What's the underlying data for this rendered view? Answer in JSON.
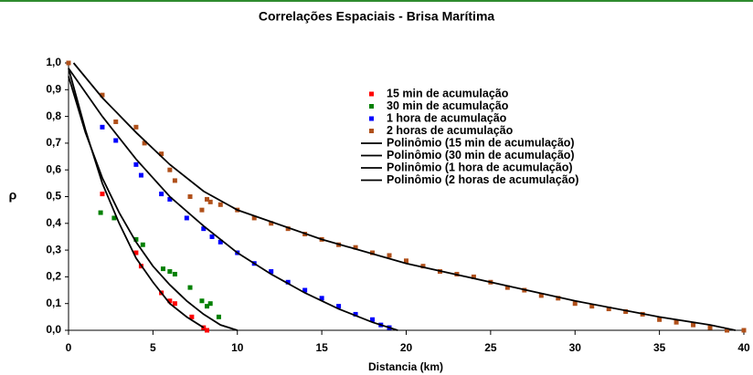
{
  "chart_data": {
    "type": "scatter",
    "title": "Correlações Espaciais - Brisa Marítima",
    "x_label": "Distancia (km)",
    "y_label": "ρ",
    "xlim": [
      0,
      40
    ],
    "xticks": [
      0,
      5,
      10,
      15,
      20,
      25,
      30,
      35,
      40
    ],
    "ylim": [
      0,
      1.0
    ],
    "yticks": [
      {
        "value": 0,
        "label": "0,0"
      },
      {
        "value": 0.1,
        "label": "0,1"
      },
      {
        "value": 0.2,
        "label": "0,2"
      },
      {
        "value": 0.3,
        "label": "0,3"
      },
      {
        "value": 0.4,
        "label": "0,4"
      },
      {
        "value": 0.5,
        "label": "0,5"
      },
      {
        "value": 0.6,
        "label": "0,6"
      },
      {
        "value": 0.7,
        "label": "0,7"
      },
      {
        "value": 0.8,
        "label": "0,8"
      },
      {
        "value": 0.9,
        "label": "0,9"
      },
      {
        "value": 1.0,
        "label": "1,0"
      }
    ],
    "grid": false,
    "series": [
      {
        "name": "15 min de acumulação",
        "color": "#ff0000",
        "style": "markers",
        "x": [
          0,
          2,
          4,
          4.3,
          5.5,
          6,
          6.3,
          7.3,
          8,
          8.2
        ],
        "values": [
          1.0,
          0.51,
          0.29,
          0.24,
          0.14,
          0.11,
          0.1,
          0.05,
          0.01,
          0.0
        ]
      },
      {
        "name": "30 min de acumulação",
        "color": "#008000",
        "style": "markers",
        "x": [
          0,
          1.9,
          2.7,
          4,
          4.4,
          5.6,
          6,
          6.3,
          7.2,
          7.9,
          8.2,
          8.4,
          8.9
        ],
        "values": [
          1.0,
          0.44,
          0.42,
          0.34,
          0.32,
          0.23,
          0.22,
          0.21,
          0.16,
          0.11,
          0.09,
          0.1,
          0.05
        ]
      },
      {
        "name": "1 hora de acumulação",
        "color": "#0000ff",
        "style": "markers",
        "x": [
          0,
          2,
          2.8,
          4,
          4.3,
          5.5,
          6,
          7,
          8,
          8.5,
          9,
          10,
          11,
          12,
          13,
          14,
          15,
          16,
          17,
          18,
          18.5,
          19
        ],
        "values": [
          1.0,
          0.76,
          0.71,
          0.62,
          0.58,
          0.51,
          0.49,
          0.42,
          0.38,
          0.35,
          0.33,
          0.29,
          0.25,
          0.22,
          0.18,
          0.15,
          0.12,
          0.09,
          0.06,
          0.04,
          0.02,
          0.01
        ]
      },
      {
        "name": "2 horas de acumulação",
        "color": "#b0501a",
        "style": "markers",
        "x": [
          0,
          2,
          2.8,
          4,
          4.5,
          5.5,
          6,
          6.3,
          7.2,
          7.9,
          8.2,
          8.4,
          9,
          10,
          11,
          12,
          13,
          14,
          15,
          16,
          17,
          18,
          19,
          20,
          21,
          22,
          23,
          24,
          25,
          26,
          27,
          28,
          29,
          30,
          31,
          32,
          33,
          34,
          35,
          36,
          37,
          38,
          39,
          40
        ],
        "values": [
          1.0,
          0.88,
          0.78,
          0.76,
          0.7,
          0.66,
          0.6,
          0.56,
          0.5,
          0.45,
          0.49,
          0.48,
          0.47,
          0.45,
          0.42,
          0.4,
          0.38,
          0.36,
          0.34,
          0.32,
          0.31,
          0.29,
          0.28,
          0.26,
          0.24,
          0.22,
          0.21,
          0.2,
          0.18,
          0.16,
          0.15,
          0.13,
          0.12,
          0.1,
          0.09,
          0.08,
          0.07,
          0.06,
          0.04,
          0.03,
          0.02,
          0.01,
          0.0,
          0.0
        ]
      },
      {
        "name": "Polinômio (15 min de acumulação)",
        "color": "#000000",
        "style": "line",
        "x": [
          0,
          1,
          2,
          3,
          4,
          5,
          6,
          7,
          8
        ],
        "values": [
          0.98,
          0.75,
          0.55,
          0.4,
          0.27,
          0.18,
          0.1,
          0.05,
          0.01
        ]
      },
      {
        "name": "Polinômio (30 min de acumulação)",
        "color": "#000000",
        "style": "line",
        "x": [
          0,
          1,
          2,
          3,
          4,
          5,
          6,
          7,
          8,
          9,
          10
        ],
        "values": [
          0.95,
          0.74,
          0.57,
          0.44,
          0.33,
          0.24,
          0.17,
          0.11,
          0.06,
          0.02,
          0.0
        ]
      },
      {
        "name": "Polinômio (1 hora de acumulação)",
        "color": "#000000",
        "style": "line",
        "x": [
          0,
          2,
          4,
          6,
          8,
          10,
          12,
          14,
          16,
          18,
          19.5
        ],
        "values": [
          0.98,
          0.8,
          0.64,
          0.5,
          0.39,
          0.29,
          0.21,
          0.14,
          0.08,
          0.03,
          0.0
        ]
      },
      {
        "name": "Polinômio (2 horas de acumulação)",
        "color": "#000000",
        "style": "line",
        "x": [
          0.3,
          2,
          4,
          6,
          8,
          10,
          15,
          20,
          25,
          30,
          35,
          38,
          39.5
        ],
        "values": [
          1.0,
          0.87,
          0.74,
          0.62,
          0.52,
          0.45,
          0.34,
          0.25,
          0.18,
          0.11,
          0.05,
          0.02,
          0.0
        ]
      }
    ]
  }
}
